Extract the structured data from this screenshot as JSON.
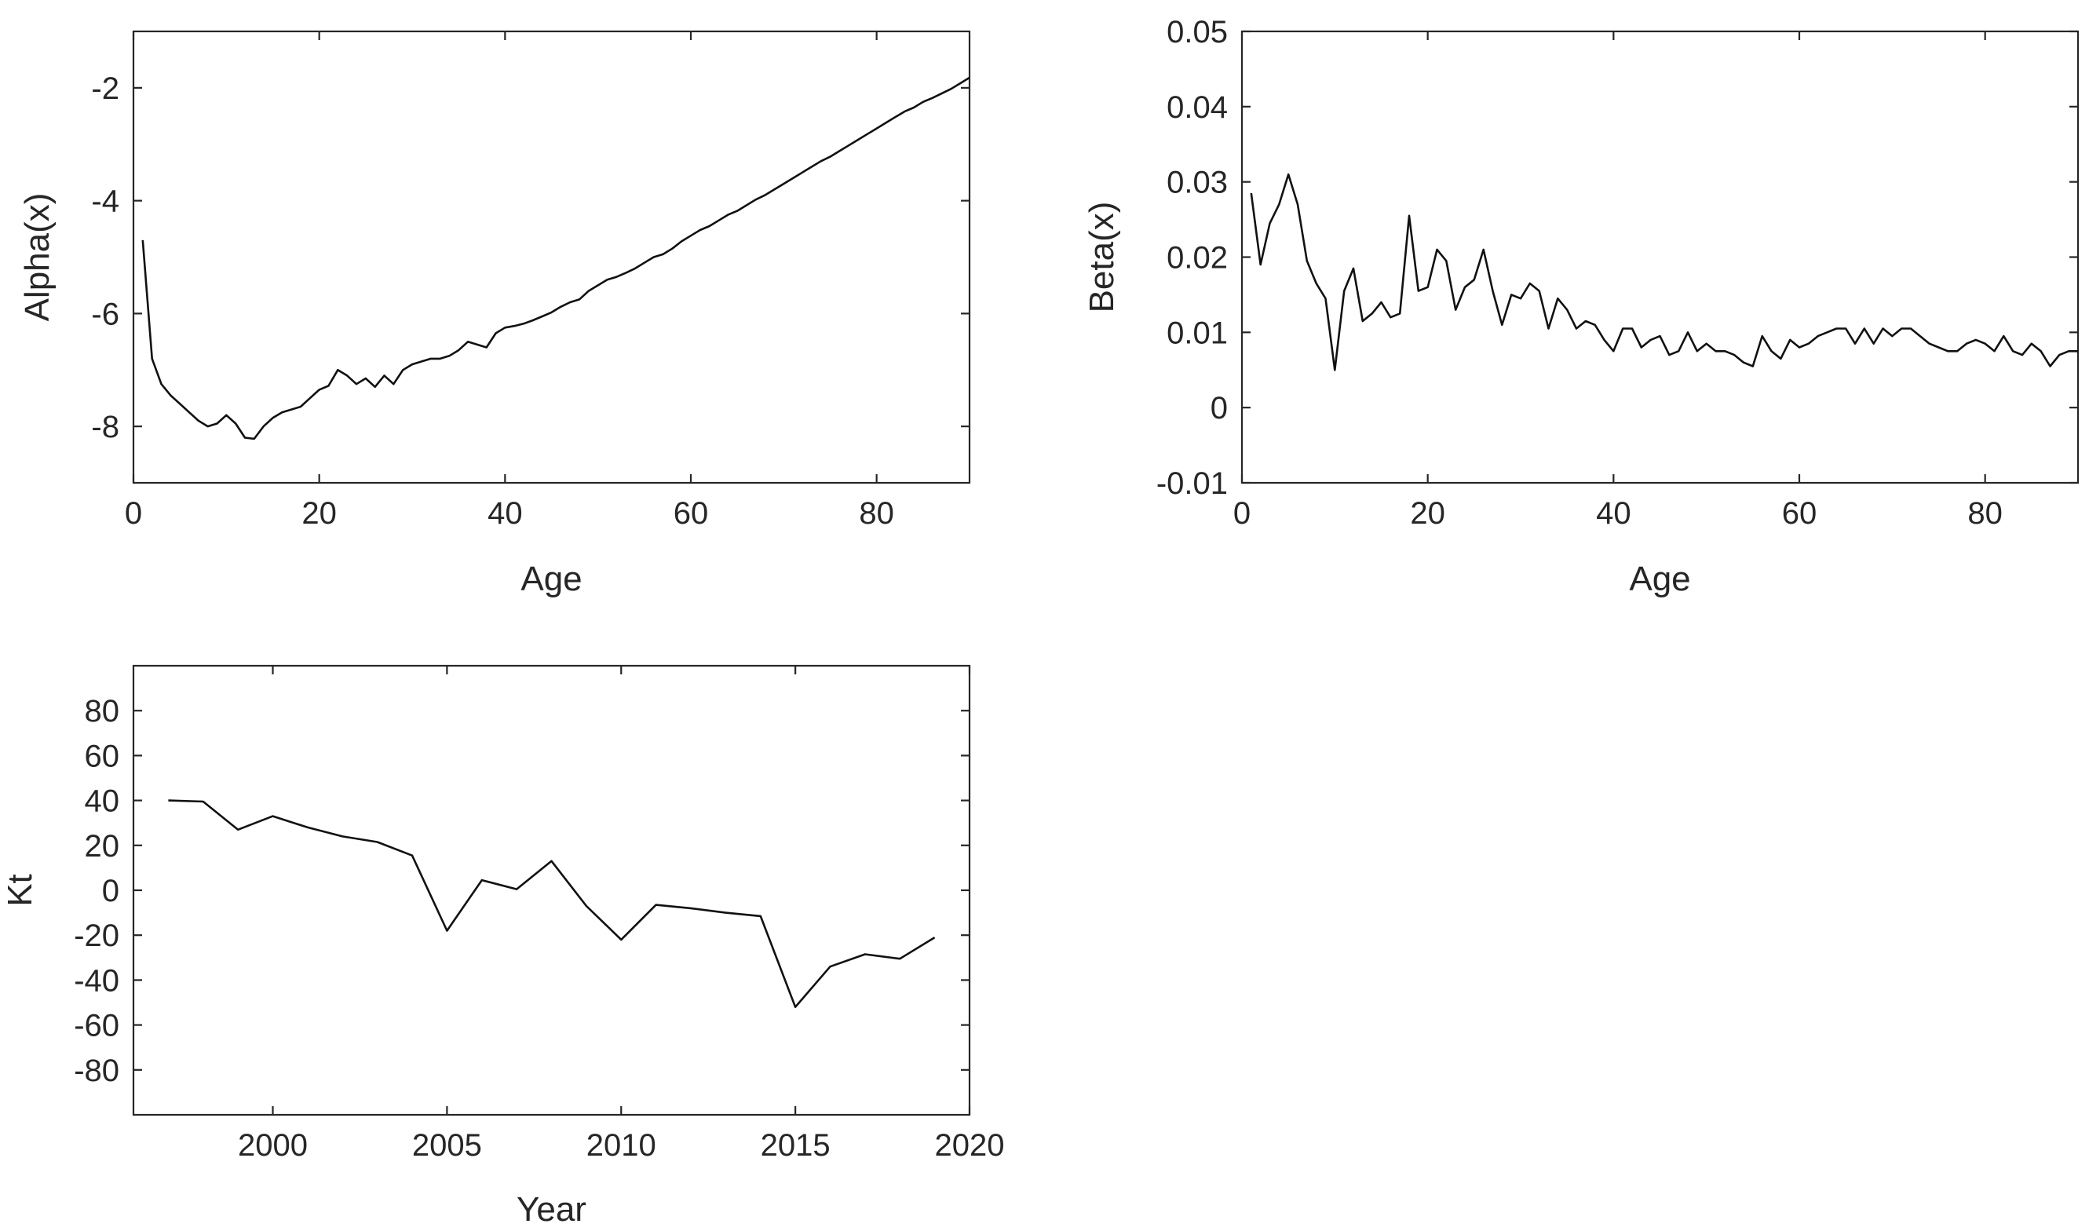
{
  "chart_data": [
    {
      "type": "line",
      "xlabel": "Age",
      "ylabel": "Alpha(x)",
      "xlim": [
        0,
        90
      ],
      "ylim": [
        -9,
        -1
      ],
      "xticks": [
        0,
        20,
        40,
        60,
        80
      ],
      "yticks": [
        -8,
        -6,
        -4,
        -2
      ],
      "xtick_labels": [
        "0",
        "20",
        "40",
        "60",
        "80"
      ],
      "ytick_labels": [
        "-8",
        "-6",
        "-4",
        "-2"
      ],
      "grid": false,
      "color": "#111111",
      "x": [
        1,
        2,
        3,
        4,
        5,
        6,
        7,
        8,
        9,
        10,
        11,
        12,
        13,
        14,
        15,
        16,
        17,
        18,
        19,
        20,
        21,
        22,
        23,
        24,
        25,
        26,
        27,
        28,
        29,
        30,
        31,
        32,
        33,
        34,
        35,
        36,
        37,
        38,
        39,
        40,
        41,
        42,
        43,
        44,
        45,
        46,
        47,
        48,
        49,
        50,
        51,
        52,
        53,
        54,
        55,
        56,
        57,
        58,
        59,
        60,
        61,
        62,
        63,
        64,
        65,
        66,
        67,
        68,
        69,
        70,
        71,
        72,
        73,
        74,
        75,
        76,
        77,
        78,
        79,
        80,
        81,
        82,
        83,
        84,
        85,
        86,
        87,
        88,
        89,
        90
      ],
      "values": [
        -4.7,
        -6.8,
        -7.25,
        -7.45,
        -7.6,
        -7.75,
        -7.9,
        -8.0,
        -7.95,
        -7.8,
        -7.95,
        -8.2,
        -8.22,
        -8.0,
        -7.85,
        -7.75,
        -7.7,
        -7.65,
        -7.5,
        -7.35,
        -7.28,
        -7.0,
        -7.1,
        -7.25,
        -7.15,
        -7.3,
        -7.1,
        -7.25,
        -7.0,
        -6.9,
        -6.85,
        -6.8,
        -6.8,
        -6.75,
        -6.65,
        -6.5,
        -6.55,
        -6.6,
        -6.35,
        -6.25,
        -6.22,
        -6.18,
        -6.12,
        -6.05,
        -5.98,
        -5.88,
        -5.8,
        -5.75,
        -5.6,
        -5.5,
        -5.4,
        -5.35,
        -5.28,
        -5.2,
        -5.1,
        -5.0,
        -4.95,
        -4.85,
        -4.72,
        -4.62,
        -4.52,
        -4.45,
        -4.35,
        -4.25,
        -4.18,
        -4.08,
        -3.98,
        -3.9,
        -3.8,
        -3.7,
        -3.6,
        -3.5,
        -3.4,
        -3.3,
        -3.22,
        -3.12,
        -3.02,
        -2.92,
        -2.82,
        -2.72,
        -2.62,
        -2.52,
        -2.42,
        -2.35,
        -2.25,
        -2.18,
        -2.1,
        -2.02,
        -1.92,
        -1.82
      ]
    },
    {
      "type": "line",
      "xlabel": "Age",
      "ylabel": "Beta(x)",
      "xlim": [
        0,
        90
      ],
      "ylim": [
        -0.01,
        0.05
      ],
      "xticks": [
        0,
        20,
        40,
        60,
        80
      ],
      "yticks": [
        -0.01,
        0,
        0.01,
        0.02,
        0.03,
        0.04,
        0.05
      ],
      "xtick_labels": [
        "0",
        "20",
        "40",
        "60",
        "80"
      ],
      "ytick_labels": [
        "-0.01",
        "0",
        "0.01",
        "0.02",
        "0.03",
        "0.04",
        "0.05"
      ],
      "grid": false,
      "color": "#111111",
      "x": [
        1,
        2,
        3,
        4,
        5,
        6,
        7,
        8,
        9,
        10,
        11,
        12,
        13,
        14,
        15,
        16,
        17,
        18,
        19,
        20,
        21,
        22,
        23,
        24,
        25,
        26,
        27,
        28,
        29,
        30,
        31,
        32,
        33,
        34,
        35,
        36,
        37,
        38,
        39,
        40,
        41,
        42,
        43,
        44,
        45,
        46,
        47,
        48,
        49,
        50,
        51,
        52,
        53,
        54,
        55,
        56,
        57,
        58,
        59,
        60,
        61,
        62,
        63,
        64,
        65,
        66,
        67,
        68,
        69,
        70,
        71,
        72,
        73,
        74,
        75,
        76,
        77,
        78,
        79,
        80,
        81,
        82,
        83,
        84,
        85,
        86,
        87,
        88,
        89,
        90
      ],
      "values": [
        0.0285,
        0.019,
        0.0245,
        0.027,
        0.031,
        0.027,
        0.0195,
        0.0165,
        0.0145,
        0.005,
        0.0155,
        0.0185,
        0.0115,
        0.0125,
        0.014,
        0.012,
        0.0125,
        0.0255,
        0.0155,
        0.016,
        0.021,
        0.0195,
        0.013,
        0.016,
        0.017,
        0.021,
        0.0155,
        0.011,
        0.015,
        0.0145,
        0.0165,
        0.0155,
        0.0105,
        0.0145,
        0.013,
        0.0105,
        0.0115,
        0.011,
        0.009,
        0.0075,
        0.0105,
        0.0105,
        0.008,
        0.009,
        0.0095,
        0.007,
        0.0075,
        0.01,
        0.0075,
        0.0085,
        0.0075,
        0.0075,
        0.007,
        0.006,
        0.0055,
        0.0095,
        0.0075,
        0.0065,
        0.009,
        0.008,
        0.0085,
        0.0095,
        0.01,
        0.0105,
        0.0105,
        0.0085,
        0.0105,
        0.0085,
        0.0105,
        0.0095,
        0.0105,
        0.0105,
        0.0095,
        0.0085,
        0.008,
        0.0075,
        0.0075,
        0.0085,
        0.009,
        0.0085,
        0.0075,
        0.0095,
        0.0075,
        0.007,
        0.0085,
        0.0075,
        0.0055,
        0.007,
        0.0075,
        0.0075
      ]
    },
    {
      "type": "line",
      "xlabel": "Year",
      "ylabel": "Kt",
      "xlim": [
        1996,
        2020
      ],
      "ylim": [
        -100,
        100
      ],
      "xticks": [
        2000,
        2005,
        2010,
        2015,
        2020
      ],
      "yticks": [
        -80,
        -60,
        -40,
        -20,
        0,
        20,
        40,
        60,
        80
      ],
      "xtick_labels": [
        "2000",
        "2005",
        "2010",
        "2015",
        "2020"
      ],
      "ytick_labels": [
        "-80",
        "-60",
        "-40",
        "-20",
        "0",
        "20",
        "40",
        "60",
        "80"
      ],
      "grid": false,
      "color": "#111111",
      "x": [
        1997,
        1998,
        1999,
        2000,
        2001,
        2002,
        2003,
        2004,
        2005,
        2006,
        2007,
        2008,
        2009,
        2010,
        2011,
        2012,
        2013,
        2014,
        2015,
        2016,
        2017,
        2018,
        2019
      ],
      "values": [
        40,
        39.5,
        27,
        33,
        28,
        24,
        21.5,
        15.5,
        -18,
        4.5,
        0.5,
        13,
        -7,
        -22,
        -6.5,
        -8,
        -10,
        -11.5,
        -52,
        -34,
        -28.5,
        -30.5,
        -21
      ]
    }
  ]
}
